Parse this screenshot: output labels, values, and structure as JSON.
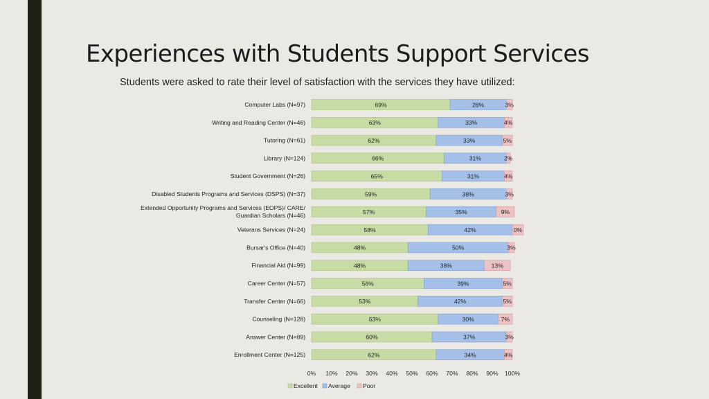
{
  "title": "Experiences with Students Support Services",
  "subtitle": "Students were asked to rate their level of satisfaction with the services they have utilized:",
  "colors": {
    "excellent": "#c6dca4",
    "average": "#a4bfe8",
    "poor": "#ecc2c3"
  },
  "chart_data": {
    "type": "bar",
    "orientation": "horizontal",
    "stacked": true,
    "categories": [
      "Computer Labs (N=97)",
      "Writing and Reading Center (N=46)",
      "Tutoring (N=61)",
      "Library (N=124)",
      "Student Government (N=26)",
      "Disabled Students Programs and Services (DSPS) (N=37)",
      "Extended Opportunity Programs and Services (EOPS)/ CARE/ Guardian Scholars (N=46)",
      "Veterans Services (N=24)",
      "Bursar's Office (N=40)",
      "Financial Aid (N=99)",
      "Career Center (N=57)",
      "Transfer Center (N=66)",
      "Counseling (N=128)",
      "Answer Center (N=89)",
      "Enrollment Center (N=125)"
    ],
    "series": [
      {
        "name": "Excellent",
        "values": [
          69,
          63,
          62,
          66,
          65,
          59,
          57,
          58,
          48,
          48,
          56,
          53,
          63,
          60,
          62
        ]
      },
      {
        "name": "Average",
        "values": [
          28,
          33,
          33,
          31,
          31,
          38,
          35,
          42,
          50,
          38,
          39,
          42,
          30,
          37,
          34
        ]
      },
      {
        "name": "Poor",
        "values": [
          3,
          4,
          5,
          2,
          4,
          3,
          9,
          0,
          3,
          13,
          5,
          5,
          7,
          3,
          4
        ]
      }
    ],
    "xlim": [
      0,
      100
    ],
    "xticks": [
      "0%",
      "10%",
      "20%",
      "30%",
      "40%",
      "50%",
      "60%",
      "70%",
      "80%",
      "90%",
      "100%"
    ],
    "grid": false,
    "legend_position": "bottom"
  }
}
